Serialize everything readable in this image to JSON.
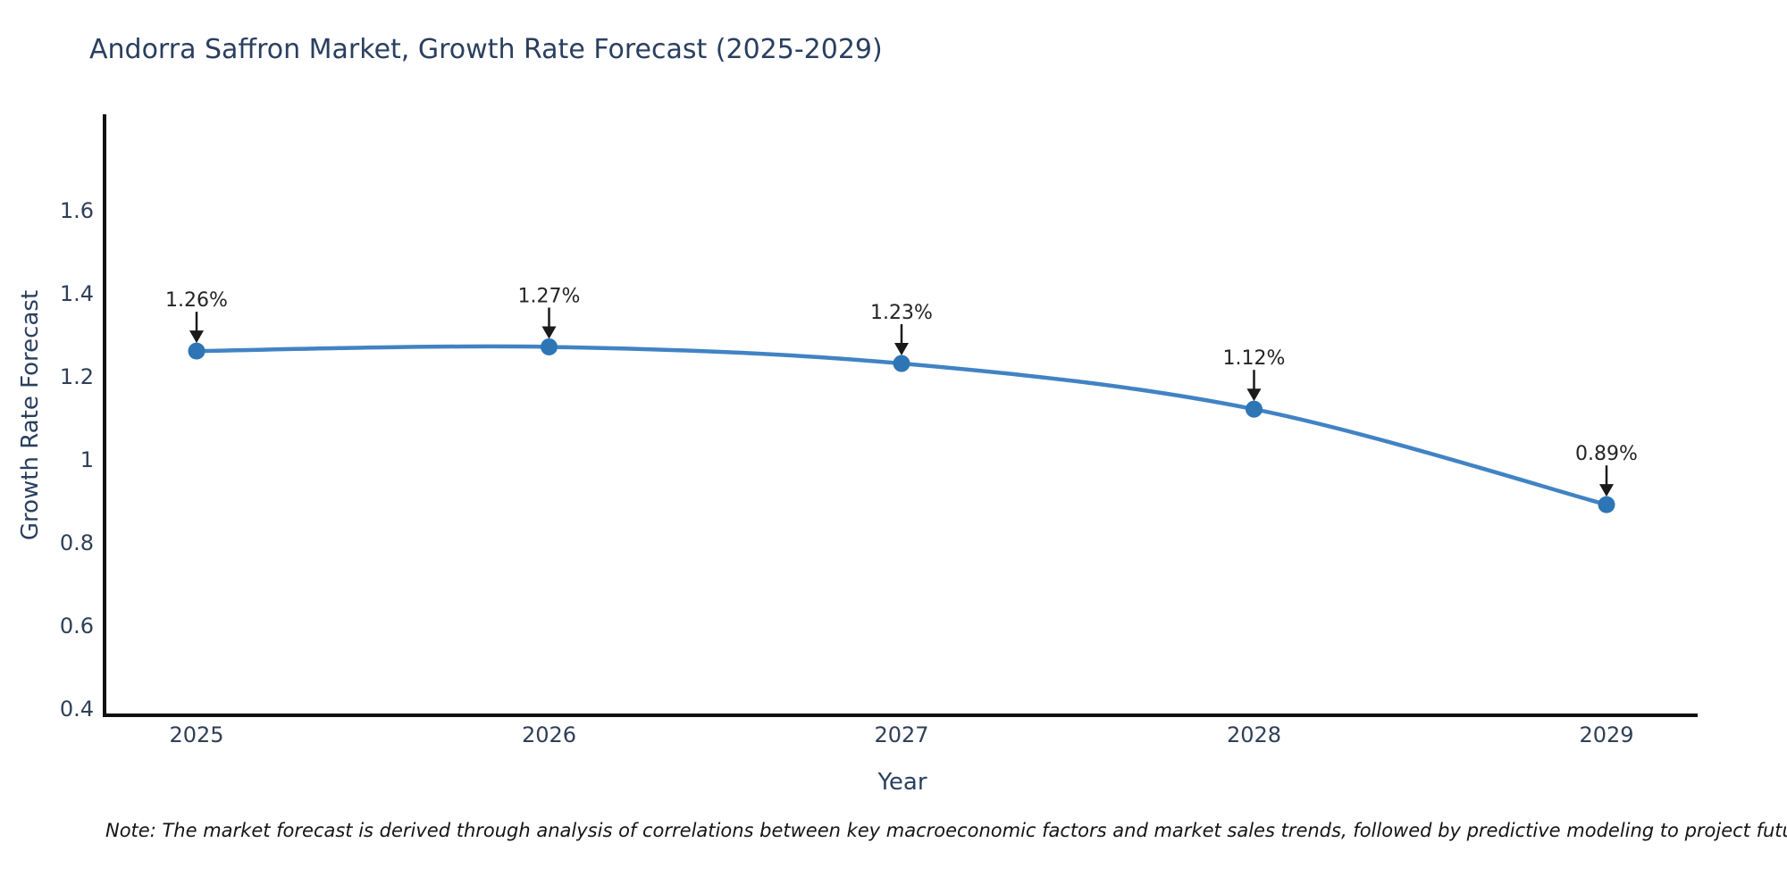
{
  "chart_data": {
    "type": "line",
    "title": "Andorra Saffron Market, Growth Rate Forecast (2025-2029)",
    "xlabel": "Year",
    "ylabel": "Growth Rate Forecast",
    "categories": [
      "2025",
      "2026",
      "2027",
      "2028",
      "2029"
    ],
    "values": [
      1.26,
      1.27,
      1.23,
      1.12,
      0.89
    ],
    "point_labels": [
      "1.26%",
      "1.27%",
      "1.23%",
      "1.12%",
      "0.89%"
    ],
    "ytick_labels": [
      "1.6",
      "1.4",
      "1.2",
      "1",
      "0.8",
      "0.6",
      "0.4"
    ],
    "ytick_values": [
      1.6,
      1.4,
      1.2,
      1.0,
      0.8,
      0.6,
      0.4
    ],
    "ylim": [
      0.4,
      1.85
    ],
    "grid": false,
    "legend": "none",
    "line_shape": "spline",
    "marker_annotation_style": "black-down-arrow",
    "colors": {
      "line": "#4183c4",
      "marker": "#2e75b6",
      "axis": "#111111",
      "tick_text": "#2f3f58",
      "title_text": "#2a3f5f",
      "annotation_text": "#242424",
      "arrow": "#1a1a1a",
      "background": "#ffffff"
    },
    "note": "Note: The market forecast is derived through analysis of correlations between key macroeconomic factors and market sales trends, followed by predictive modeling to project future sales"
  }
}
